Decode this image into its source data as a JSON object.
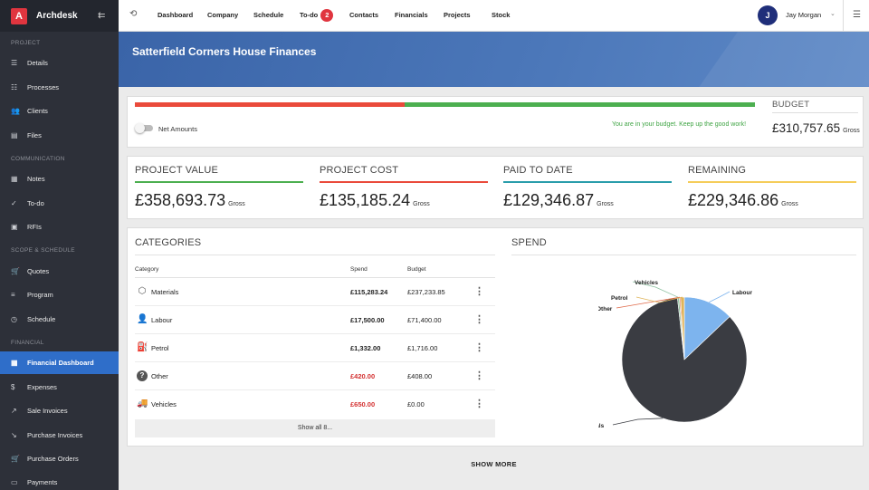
{
  "app": {
    "logo_letter": "A",
    "name": "Archdesk"
  },
  "sidebar": {
    "sections": {
      "project": "PROJECT",
      "communication": "COMMUNICATION",
      "scope": "SCOPE & SCHEDULE",
      "financial": "FINANCIAL"
    },
    "items": [
      {
        "label": "Details",
        "icon": "list-icon"
      },
      {
        "label": "Processes",
        "icon": "hierarchy-icon"
      },
      {
        "label": "Clients",
        "icon": "people-icon"
      },
      {
        "label": "Files",
        "icon": "file-icon"
      },
      {
        "label": "Notes",
        "icon": "note-icon"
      },
      {
        "label": "To-do",
        "icon": "check-icon"
      },
      {
        "label": "RFIs",
        "icon": "chat-icon"
      },
      {
        "label": "Quotes",
        "icon": "cart-icon"
      },
      {
        "label": "Program",
        "icon": "tasks-icon"
      },
      {
        "label": "Schedule",
        "icon": "clock-icon"
      },
      {
        "label": "Financial Dashboard",
        "icon": "dashboard-icon",
        "active": true
      },
      {
        "label": "Expenses",
        "icon": "dollar-icon"
      },
      {
        "label": "Sale Invoices",
        "icon": "trend-up-icon"
      },
      {
        "label": "Purchase Invoices",
        "icon": "trend-down-icon"
      },
      {
        "label": "Purchase Orders",
        "icon": "cart-icon"
      },
      {
        "label": "Payments",
        "icon": "money-icon"
      }
    ]
  },
  "topnav": {
    "items": [
      "Dashboard",
      "Company",
      "Schedule",
      "To-do",
      "Contacts",
      "Financials",
      "Projects",
      "Stock"
    ],
    "todo_badge": "2",
    "user_initial": "J",
    "user_name": "Jay Morgan"
  },
  "page": {
    "title": "Satterfield Corners House Finances"
  },
  "budget": {
    "label": "BUDGET",
    "value": "£310,757.65",
    "gross": "Gross",
    "toggle_label": "Net Amounts",
    "message": "You are in your budget. Keep up the good work!",
    "spent_fraction": 0.4353
  },
  "stats": [
    {
      "label": "PROJECT VALUE",
      "value": "£358,693.73",
      "gross": "Gross",
      "color": "#4caf50"
    },
    {
      "label": "PROJECT COST",
      "value": "£135,185.24",
      "gross": "Gross",
      "color": "#ea4a3b"
    },
    {
      "label": "PAID TO DATE",
      "value": "£129,346.87",
      "gross": "Gross",
      "color": "#2a9dab"
    },
    {
      "label": "REMAINING",
      "value": "£229,346.86",
      "gross": "Gross",
      "color": "#f5cd5a"
    }
  ],
  "categories": {
    "title": "CATEGORIES",
    "headers": {
      "category": "Category",
      "spend": "Spend",
      "budget": "Budget"
    },
    "rows": [
      {
        "name": "Materials",
        "spend": "£115,283.24",
        "budget": "£237,233.85",
        "over": false,
        "icon": "box-icon"
      },
      {
        "name": "Labour",
        "spend": "£17,500.00",
        "budget": "£71,400.00",
        "over": false,
        "icon": "worker-icon"
      },
      {
        "name": "Petrol",
        "spend": "£1,332.00",
        "budget": "£1,716.00",
        "over": false,
        "icon": "fuel-icon"
      },
      {
        "name": "Other",
        "spend": "£420.00",
        "budget": "£408.00",
        "over": true,
        "icon": "question-icon"
      },
      {
        "name": "Vehicles",
        "spend": "£650.00",
        "budget": "£0.00",
        "over": true,
        "icon": "truck-icon"
      }
    ],
    "show_all": "Show all 8..."
  },
  "spend": {
    "title": "SPEND",
    "chart_data": {
      "type": "pie",
      "categories": [
        "Materials",
        "Labour",
        "Petrol",
        "Other",
        "Vehicles"
      ],
      "values": [
        115283.24,
        17500.0,
        1332.0,
        420.0,
        650.0
      ],
      "colors": [
        "#3a3c42",
        "#7db4ee",
        "#e0b45a",
        "#e06a4a",
        "#8cc0a0"
      ]
    }
  },
  "show_more": "SHOW MORE"
}
